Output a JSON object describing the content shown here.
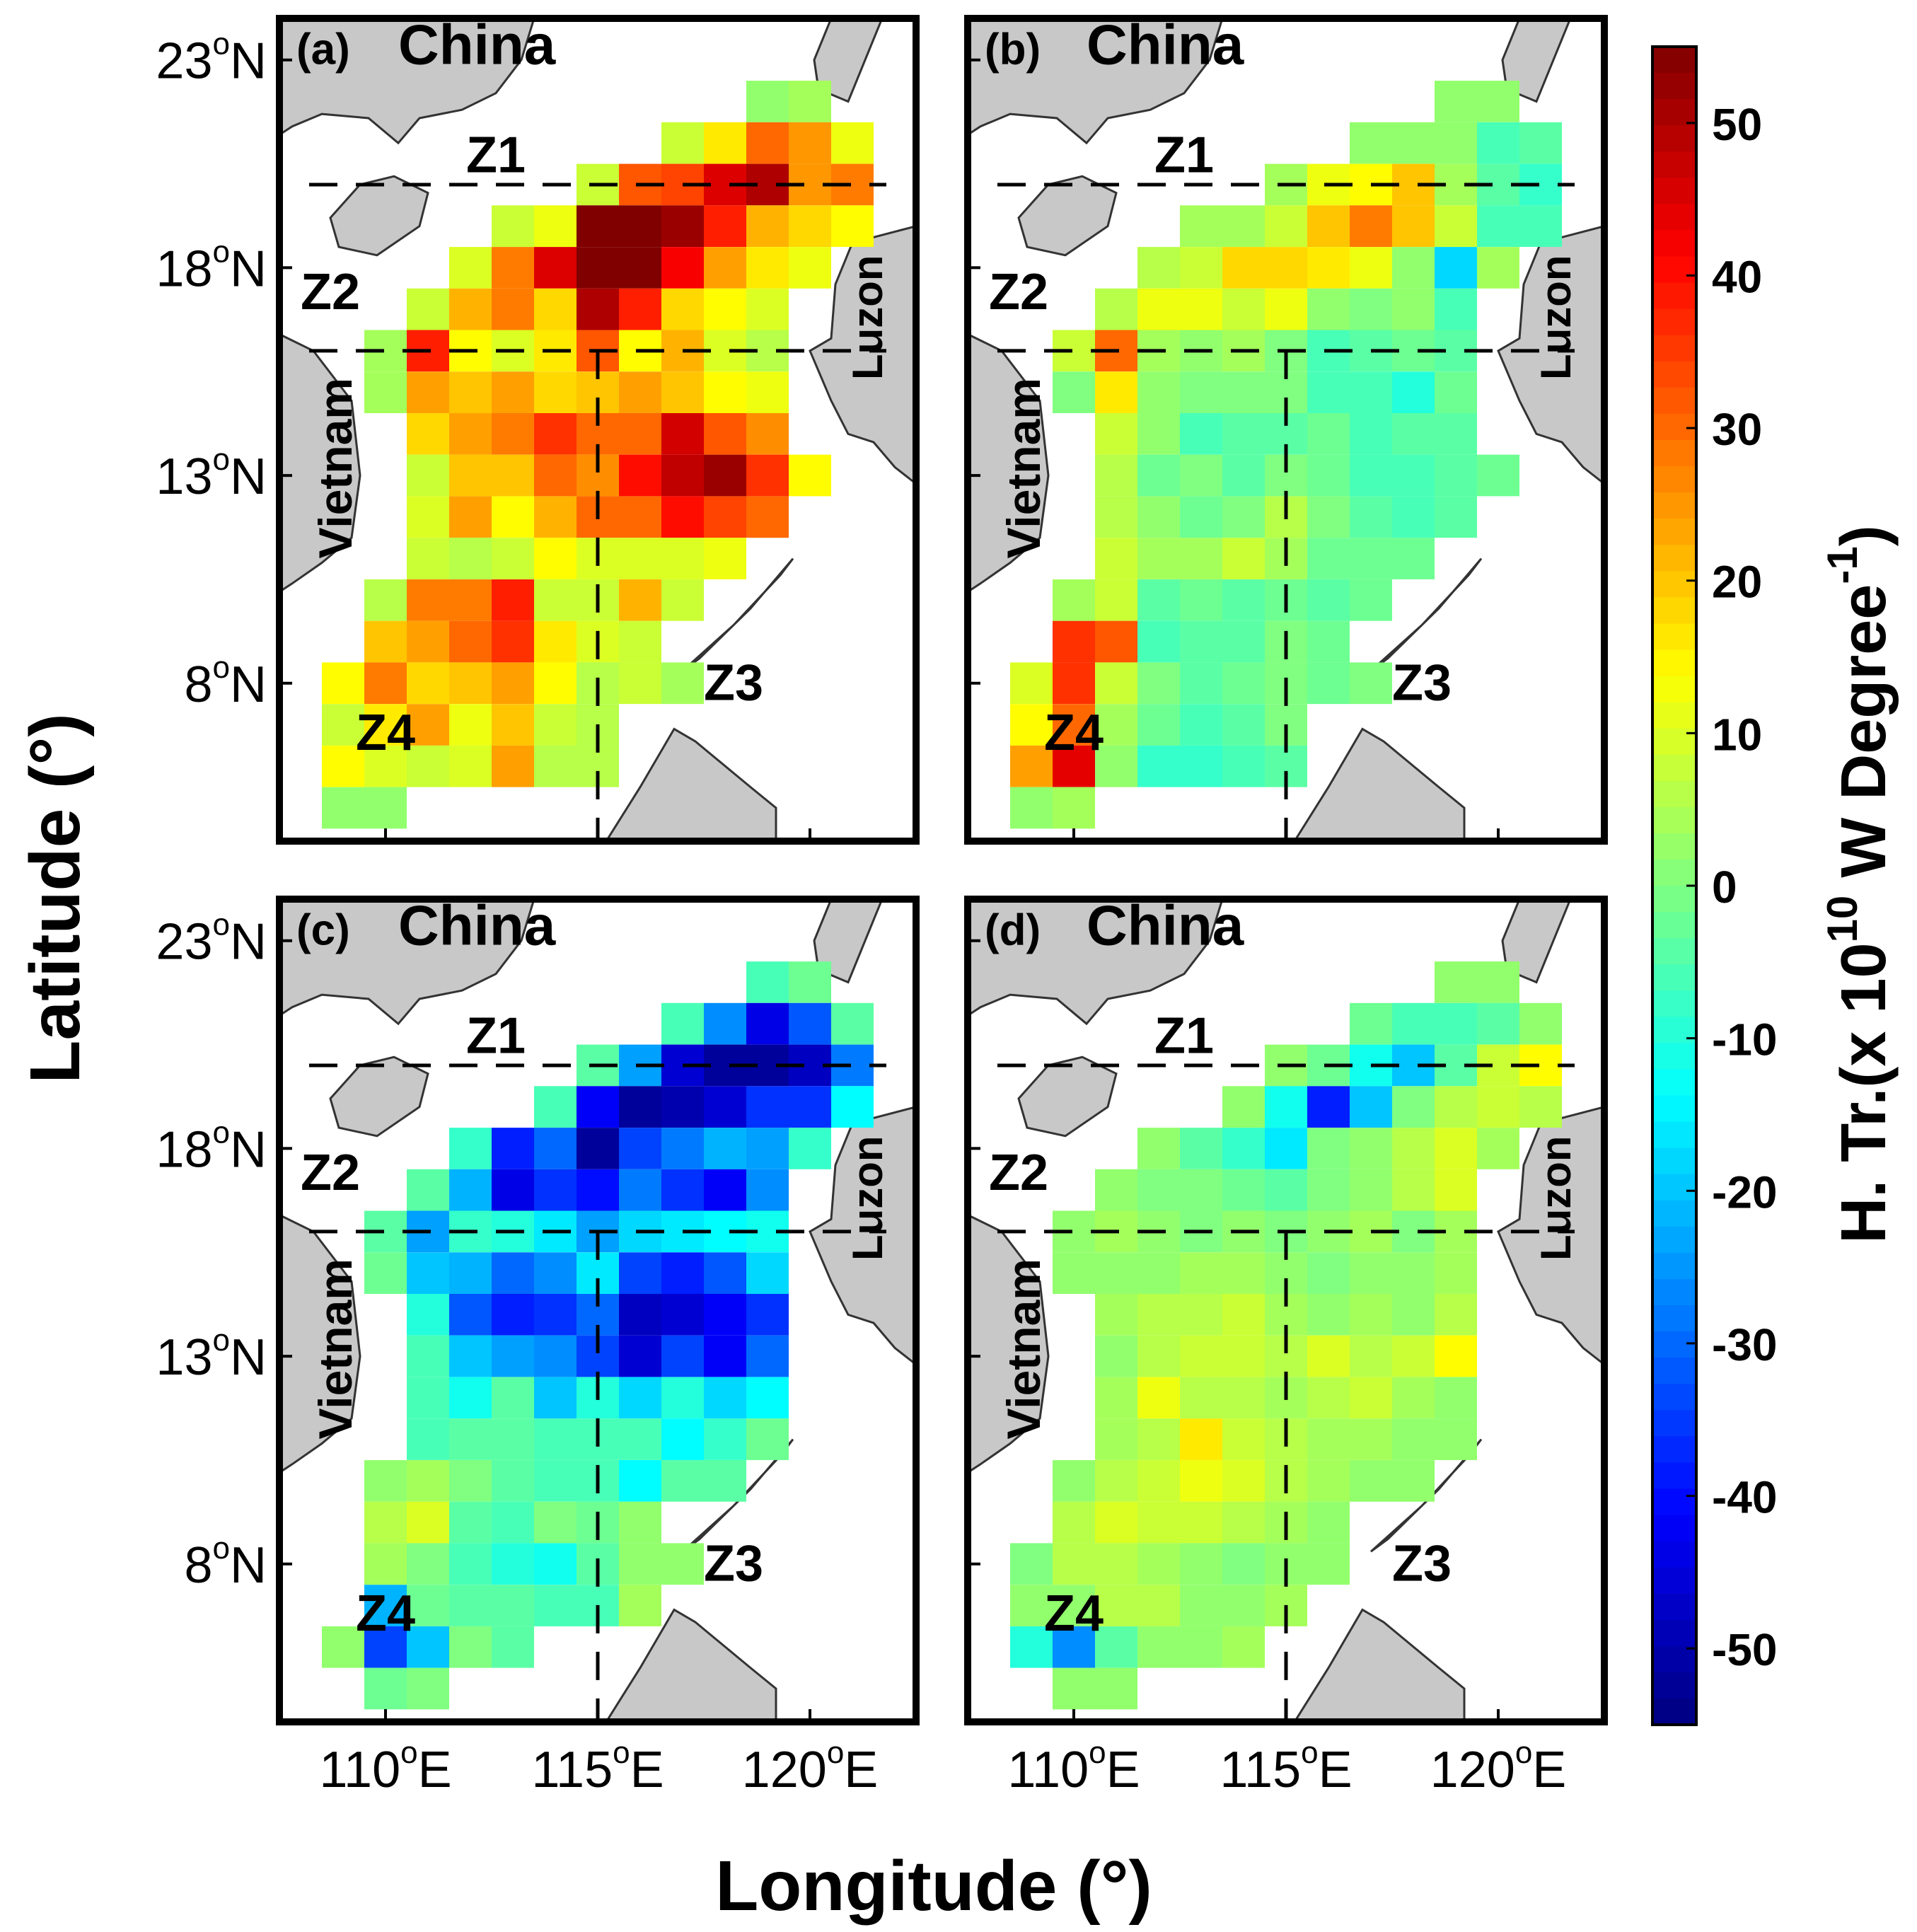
{
  "chart_data": {
    "type": "heatmap",
    "x_axis": {
      "label": "Longitude (°)",
      "range": [
        107.5,
        122.5
      ],
      "ticks": [
        {
          "value": 110,
          "num": "110",
          "deg": "o",
          "hem": "E"
        },
        {
          "value": 115,
          "num": "115",
          "deg": "o",
          "hem": "E"
        },
        {
          "value": 120,
          "num": "120",
          "deg": "o",
          "hem": "E"
        }
      ]
    },
    "y_axis": {
      "label": "Latitude (°)",
      "range": [
        4.2,
        24.0
      ],
      "ticks": [
        {
          "value": 8,
          "num": "8",
          "deg": "o",
          "hem": "N"
        },
        {
          "value": 13,
          "num": "13",
          "deg": "o",
          "hem": "N"
        },
        {
          "value": 18,
          "num": "18",
          "deg": "o",
          "hem": "N"
        },
        {
          "value": 23,
          "num": "23",
          "deg": "o",
          "hem": "N"
        }
      ]
    },
    "colorbar": {
      "min": -55,
      "max": 55,
      "ticks": [
        50,
        40,
        30,
        20,
        10,
        0,
        -10,
        -20,
        -30,
        -40,
        -50
      ],
      "label_main": "H. Tr.(x 10",
      "label_exp": "10",
      "label_unit": " W Degree",
      "label_unit_exp": "-1",
      "label_close": ")"
    },
    "grid": {
      "lon0": 108,
      "lat0": 5,
      "step": 1
    },
    "boundaries": {
      "lat_split": 16,
      "lon_split": 115,
      "lat_z1": 20
    },
    "panels": [
      {
        "id": "a",
        "label": "(a)",
        "region": "China",
        "values": [
          "__nn...............",
          "_______..,,........",
          "x_12a_..,,....",
          "x_d8x____........",
          "_0b62c2......",
          "_d_12deec......",
          "_ce06bb61.....",
          "_a6c_4bba.....",
          "_e09_dc0f....",
          "2__12.......",
          "__d06d....",
          "__...",
          ".._.",
          "........."
        ]
      }
    ]
  }
}
